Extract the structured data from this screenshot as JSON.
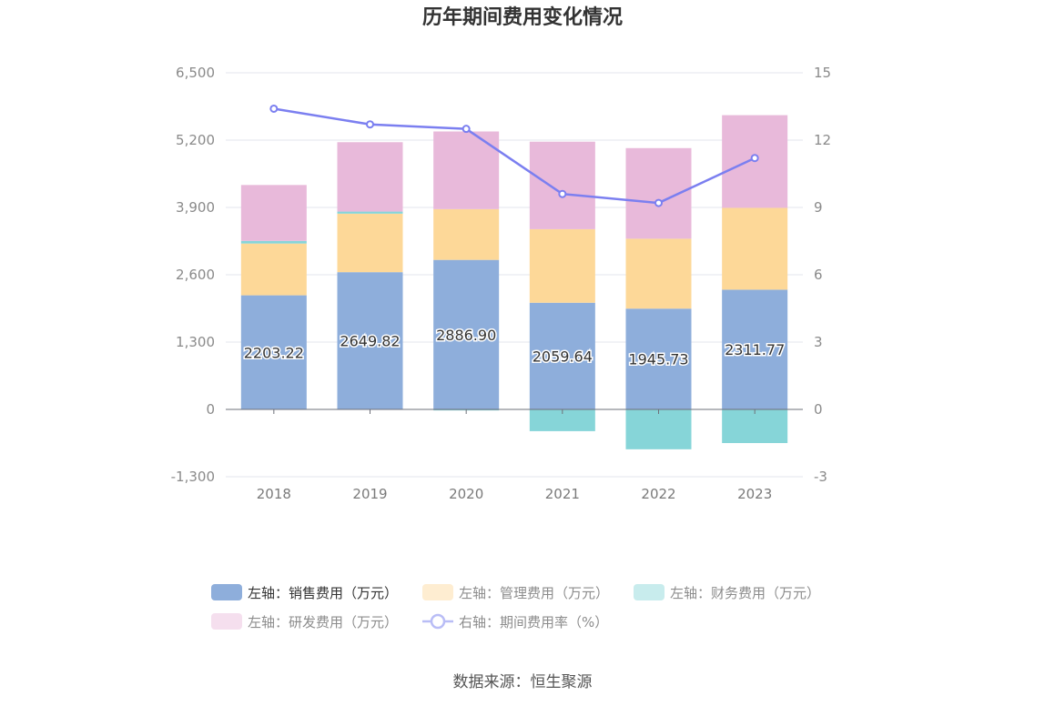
{
  "chart_data": {
    "type": "bar",
    "title": "历年期间费用变化情况",
    "categories": [
      "2018",
      "2019",
      "2020",
      "2021",
      "2022",
      "2023"
    ],
    "left_axis": {
      "ylim": [
        -1300,
        6500
      ],
      "ticks": [
        "-1,300",
        "0",
        "1,300",
        "2,600",
        "3,900",
        "5,200",
        "6,500"
      ]
    },
    "right_axis": {
      "ylim": [
        -3,
        15
      ],
      "ticks": [
        "-3",
        "0",
        "3",
        "6",
        "9",
        "12",
        "15"
      ]
    },
    "series": [
      {
        "name": "左轴：销售费用（万元）",
        "type": "bar",
        "axis": "left",
        "color": "#8eaedb",
        "values": [
          2203.22,
          2649.82,
          2886.9,
          2059.64,
          1945.73,
          2311.77
        ],
        "labels": [
          "2203.22",
          "2649.82",
          "2886.90",
          "2059.64",
          "1945.73",
          "2311.77"
        ]
      },
      {
        "name": "左轴：管理费用（万元）",
        "type": "bar",
        "axis": "left",
        "color": "#fdd898",
        "values": [
          1000,
          1130,
          980,
          1420,
          1350,
          1580
        ]
      },
      {
        "name": "左轴：财务费用（万元）",
        "type": "bar",
        "axis": "left",
        "color": "#86d5d8",
        "values": [
          50,
          40,
          -20,
          -420,
          -770,
          -650
        ]
      },
      {
        "name": "左轴：研发费用（万元）",
        "type": "bar",
        "axis": "left",
        "color": "#e8b9da",
        "values": [
          1080,
          1340,
          1500,
          1690,
          1750,
          1790
        ]
      },
      {
        "name": "右轴：期间费用率（%）",
        "type": "line",
        "axis": "right",
        "color": "#7b7ff0",
        "values": [
          13.4,
          12.7,
          12.5,
          9.6,
          9.2,
          11.2
        ]
      }
    ],
    "legend_position": "bottom"
  },
  "source": "数据来源：恒生聚源"
}
